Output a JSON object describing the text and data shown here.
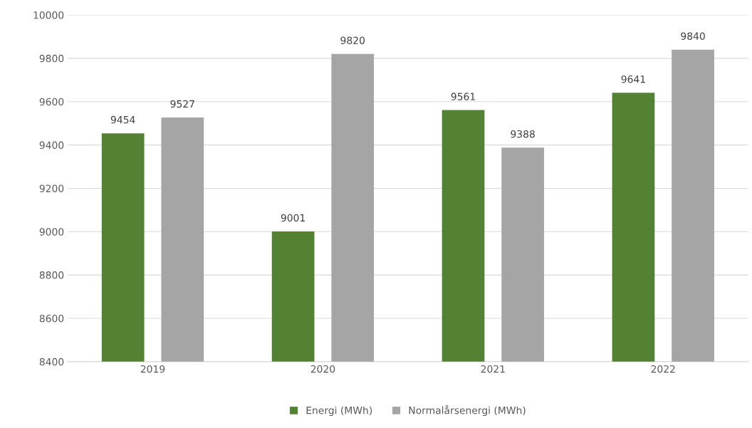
{
  "chart_data": {
    "type": "bar",
    "categories": [
      "2019",
      "2020",
      "2021",
      "2022"
    ],
    "series": [
      {
        "name": "Energi (MWh)",
        "color": "#548235",
        "values": [
          9454,
          9001,
          9561,
          9641
        ]
      },
      {
        "name": "Normalårsenergi (MWh)",
        "color": "#a5a5a5",
        "values": [
          9527,
          9820,
          9388,
          9840
        ]
      }
    ],
    "ylim": [
      8400,
      10000
    ],
    "yticks": [
      8400,
      8600,
      8800,
      9000,
      9200,
      9400,
      9600,
      9800,
      10000
    ],
    "grid": "y",
    "legend": "bottom",
    "data_labels": true
  }
}
